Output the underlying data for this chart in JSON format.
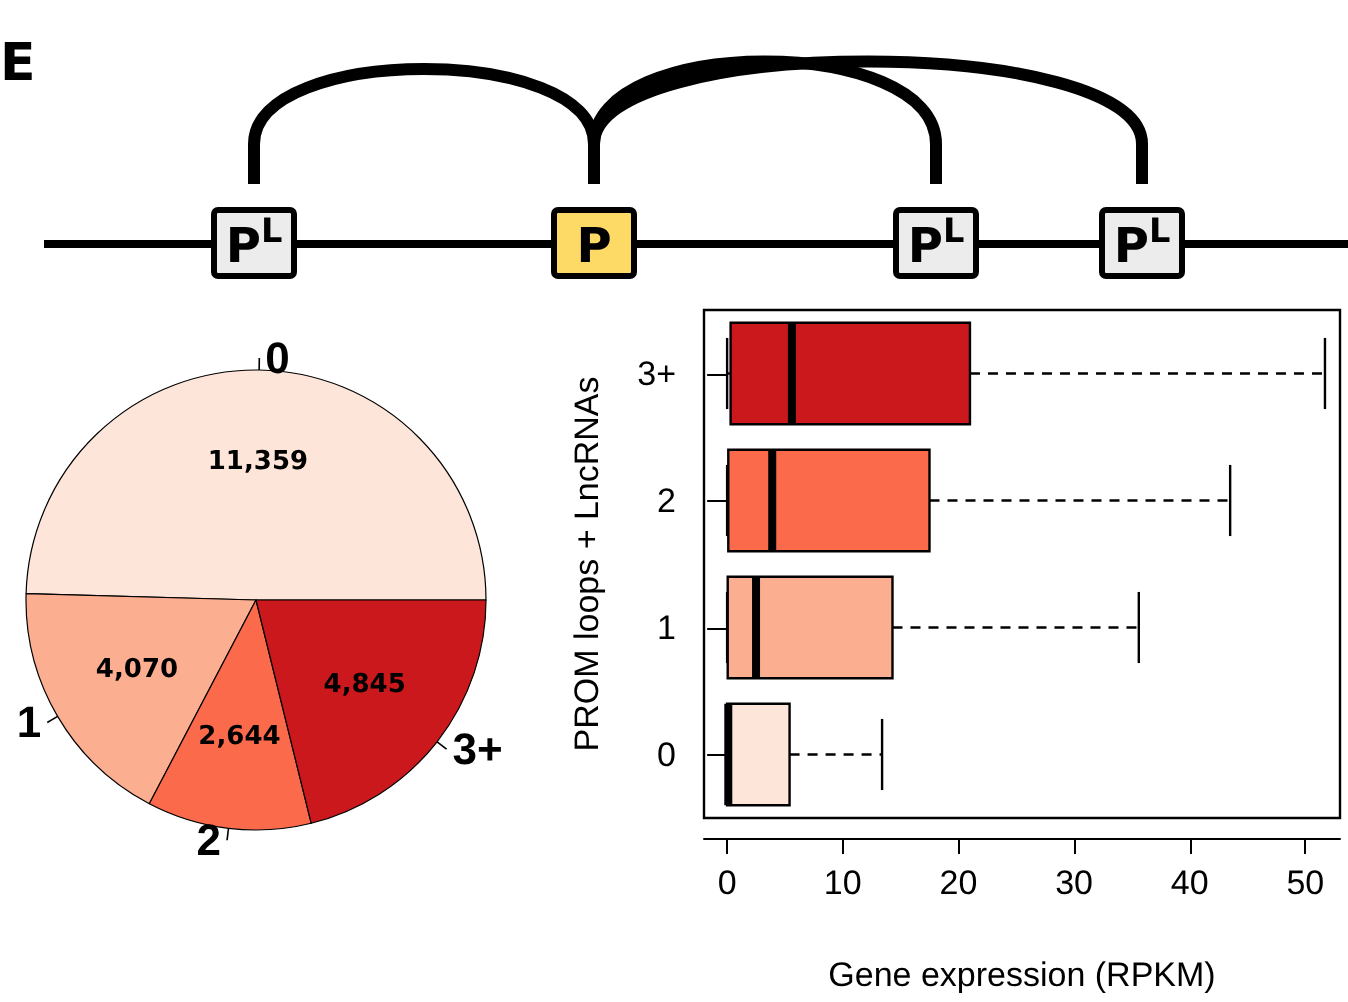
{
  "chart_data": [
    {
      "type": "other",
      "title": "E",
      "annotations": [
        "P$^{L}$",
        "P",
        "P$^{L}$",
        "P$^{L}$"
      ]
    },
    {
      "type": "pie",
      "categories": [
        "0",
        "1",
        "2",
        "3+"
      ],
      "values": [
        11359,
        4070,
        2644,
        4845
      ],
      "colors": [
        "#fee5d9",
        "#fcae91",
        "#fb6a4a",
        "#cb181d"
      ],
      "value_labels": [
        "11,359",
        "4,070",
        "2,644",
        "4,845"
      ],
      "legend": false
    },
    {
      "type": "box",
      "orientation": "horizontal",
      "categories": [
        "3+",
        "2",
        "1",
        "0"
      ],
      "colors": [
        "#cb181d",
        "#fb6a4a",
        "#fcae91",
        "#fee5d9"
      ],
      "boxes": [
        {
          "low": 0,
          "q1": 0.3,
          "median": 5.6,
          "q3": 21.0,
          "high": 51.7
        },
        {
          "low": 0,
          "q1": 0.1,
          "median": 3.9,
          "q3": 17.5,
          "high": 43.5
        },
        {
          "low": 0,
          "q1": 0.05,
          "median": 2.5,
          "q3": 14.3,
          "high": 35.6
        },
        {
          "low": 0,
          "q1": 0,
          "median": 0.1,
          "q3": 5.4,
          "high": 13.4
        }
      ],
      "xlabel": "Gene expression (RPKM)",
      "ylabel": "PROM loops + LncRNAs",
      "xlim": [
        -2,
        53
      ],
      "xticks": [
        0,
        10,
        20,
        30,
        40,
        50
      ],
      "grid": false,
      "legend": false
    }
  ]
}
